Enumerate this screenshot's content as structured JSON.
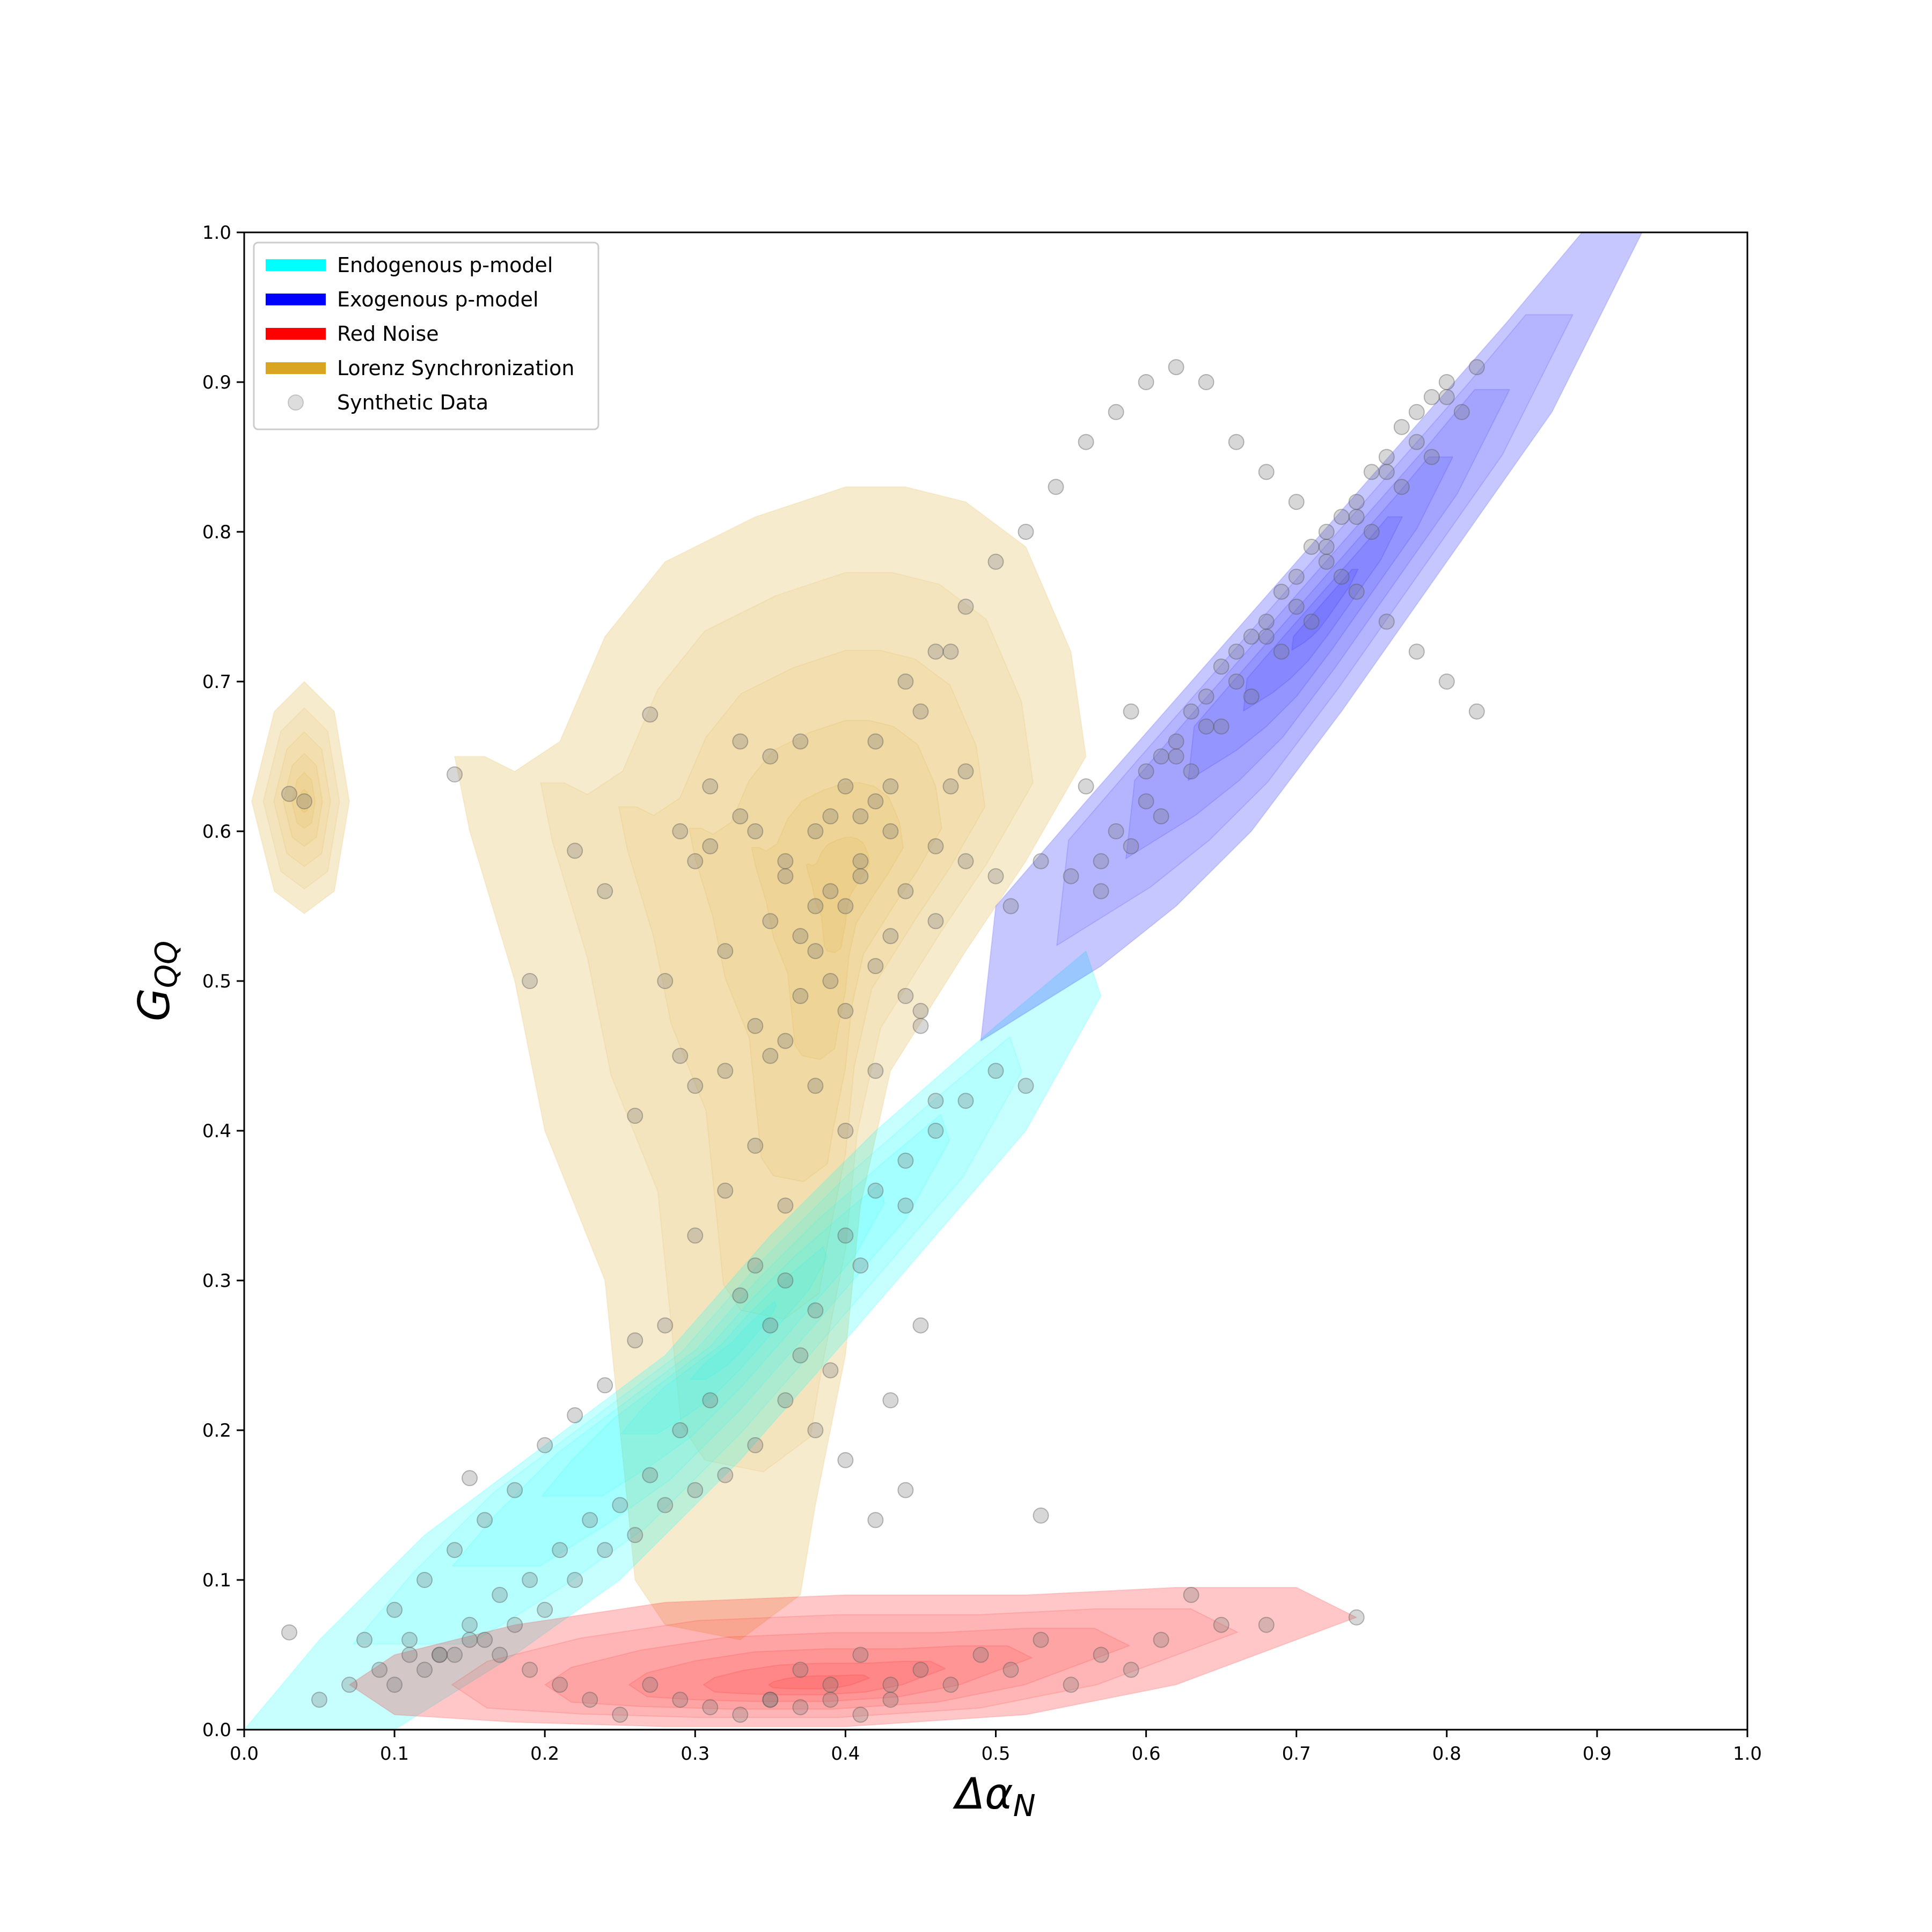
{
  "chart_data": {
    "type": "scatter",
    "title": "",
    "xlabel": "Δα_N",
    "ylabel": "G_QQ",
    "xlim": [
      0.0,
      1.0
    ],
    "ylim": [
      0.0,
      1.0
    ],
    "xticks": [
      "0.0",
      "0.1",
      "0.2",
      "0.3",
      "0.4",
      "0.5",
      "0.6",
      "0.7",
      "0.8",
      "0.9",
      "1.0"
    ],
    "yticks": [
      "0.0",
      "0.1",
      "0.2",
      "0.3",
      "0.4",
      "0.5",
      "0.6",
      "0.7",
      "0.8",
      "0.9",
      "1.0"
    ],
    "grid": false,
    "legend_position": "top-left",
    "legend": [
      {
        "label": "Endogenous p-model",
        "color": "#00ffff",
        "kind": "patch"
      },
      {
        "label": "Exogenous p-model",
        "color": "#0000ff",
        "kind": "patch"
      },
      {
        "label": "Red Noise",
        "color": "#ff0000",
        "kind": "patch"
      },
      {
        "label": "Lorenz Synchronization",
        "color": "#daa520",
        "kind": "patch"
      },
      {
        "label": "Synthetic Data",
        "color": "#bbbbbb",
        "kind": "marker"
      }
    ],
    "density_regions": [
      {
        "series": "Lorenz Synchronization",
        "color": "#daa520",
        "center": [
          0.4,
          0.57
        ],
        "outline": [
          [
            0.26,
            0.1
          ],
          [
            0.24,
            0.3
          ],
          [
            0.2,
            0.4
          ],
          [
            0.18,
            0.5
          ],
          [
            0.15,
            0.6
          ],
          [
            0.14,
            0.65
          ],
          [
            0.16,
            0.65
          ],
          [
            0.18,
            0.64
          ],
          [
            0.21,
            0.66
          ],
          [
            0.24,
            0.73
          ],
          [
            0.28,
            0.78
          ],
          [
            0.34,
            0.81
          ],
          [
            0.4,
            0.83
          ],
          [
            0.44,
            0.83
          ],
          [
            0.48,
            0.82
          ],
          [
            0.52,
            0.79
          ],
          [
            0.55,
            0.72
          ],
          [
            0.56,
            0.65
          ],
          [
            0.52,
            0.58
          ],
          [
            0.48,
            0.52
          ],
          [
            0.43,
            0.44
          ],
          [
            0.41,
            0.35
          ],
          [
            0.4,
            0.25
          ],
          [
            0.38,
            0.15
          ],
          [
            0.37,
            0.09
          ],
          [
            0.33,
            0.06
          ],
          [
            0.28,
            0.07
          ]
        ]
      },
      {
        "series": "Lorenz Synchronization",
        "color": "#daa520",
        "center": [
          0.04,
          0.62
        ],
        "outline": [
          [
            0.005,
            0.62
          ],
          [
            0.02,
            0.68
          ],
          [
            0.04,
            0.7
          ],
          [
            0.06,
            0.68
          ],
          [
            0.07,
            0.62
          ],
          [
            0.06,
            0.56
          ],
          [
            0.04,
            0.545
          ],
          [
            0.02,
            0.56
          ]
        ]
      },
      {
        "series": "Endogenous p-model",
        "color": "#00ffff",
        "center": [
          0.33,
          0.26
        ],
        "outline": [
          [
            0.0,
            0.0
          ],
          [
            0.05,
            0.06
          ],
          [
            0.12,
            0.13
          ],
          [
            0.2,
            0.19
          ],
          [
            0.28,
            0.25
          ],
          [
            0.35,
            0.33
          ],
          [
            0.42,
            0.4
          ],
          [
            0.5,
            0.47
          ],
          [
            0.56,
            0.52
          ],
          [
            0.57,
            0.49
          ],
          [
            0.52,
            0.4
          ],
          [
            0.46,
            0.33
          ],
          [
            0.4,
            0.26
          ],
          [
            0.33,
            0.18
          ],
          [
            0.25,
            0.1
          ],
          [
            0.18,
            0.05
          ],
          [
            0.1,
            0.0
          ]
        ]
      },
      {
        "series": "Exogenous p-model",
        "color": "#0000ff",
        "center": [
          0.72,
          0.75
        ],
        "outline": [
          [
            0.49,
            0.46
          ],
          [
            0.5,
            0.55
          ],
          [
            0.56,
            0.62
          ],
          [
            0.63,
            0.7
          ],
          [
            0.7,
            0.78
          ],
          [
            0.77,
            0.86
          ],
          [
            0.84,
            0.94
          ],
          [
            0.89,
            1.0
          ],
          [
            0.93,
            1.0
          ],
          [
            0.87,
            0.88
          ],
          [
            0.8,
            0.78
          ],
          [
            0.73,
            0.68
          ],
          [
            0.67,
            0.6
          ],
          [
            0.62,
            0.55
          ],
          [
            0.57,
            0.51
          ]
        ]
      },
      {
        "series": "Red Noise",
        "color": "#ff0000",
        "center": [
          0.38,
          0.03
        ],
        "outline": [
          [
            0.07,
            0.03
          ],
          [
            0.1,
            0.05
          ],
          [
            0.18,
            0.07
          ],
          [
            0.28,
            0.085
          ],
          [
            0.4,
            0.09
          ],
          [
            0.52,
            0.09
          ],
          [
            0.62,
            0.095
          ],
          [
            0.7,
            0.095
          ],
          [
            0.74,
            0.075
          ],
          [
            0.7,
            0.06
          ],
          [
            0.62,
            0.03
          ],
          [
            0.52,
            0.01
          ],
          [
            0.4,
            0.002
          ],
          [
            0.28,
            0.002
          ],
          [
            0.18,
            0.005
          ],
          [
            0.1,
            0.01
          ]
        ]
      }
    ],
    "series": [
      {
        "name": "Synthetic Data",
        "kind": "points",
        "x": [
          0.03,
          0.04,
          0.14,
          0.19,
          0.22,
          0.24,
          0.26,
          0.27,
          0.28,
          0.29,
          0.3,
          0.31,
          0.32,
          0.33,
          0.34,
          0.35,
          0.36,
          0.37,
          0.38,
          0.39,
          0.4,
          0.41,
          0.42,
          0.43,
          0.44,
          0.45,
          0.46,
          0.47,
          0.48,
          0.42,
          0.4,
          0.38,
          0.36,
          0.34,
          0.32,
          0.3,
          0.44,
          0.46,
          0.48,
          0.5,
          0.35,
          0.37,
          0.39,
          0.41,
          0.43,
          0.45,
          0.47,
          0.33,
          0.31,
          0.29,
          0.41,
          0.39,
          0.37,
          0.35,
          0.43,
          0.45,
          0.38,
          0.36,
          0.34,
          0.4,
          0.42,
          0.44,
          0.46,
          0.32,
          0.3,
          0.28,
          0.26,
          0.24,
          0.22,
          0.2,
          0.18,
          0.16,
          0.14,
          0.12,
          0.1,
          0.08,
          0.34,
          0.36,
          0.38,
          0.4,
          0.42,
          0.44,
          0.46,
          0.48,
          0.5,
          0.52,
          0.33,
          0.35,
          0.37,
          0.39,
          0.41,
          0.43,
          0.45,
          0.31,
          0.29,
          0.27,
          0.25,
          0.23,
          0.21,
          0.19,
          0.17,
          0.15,
          0.13,
          0.11,
          0.09,
          0.07,
          0.05,
          0.03,
          0.36,
          0.38,
          0.4,
          0.42,
          0.44,
          0.34,
          0.32,
          0.3,
          0.28,
          0.26,
          0.24,
          0.22,
          0.2,
          0.18,
          0.16,
          0.14,
          0.12,
          0.1,
          0.35,
          0.37,
          0.39,
          0.41,
          0.43,
          0.45,
          0.47,
          0.49,
          0.51,
          0.53,
          0.55,
          0.57,
          0.59,
          0.61,
          0.63,
          0.65,
          0.68,
          0.74,
          0.33,
          0.35,
          0.37,
          0.39,
          0.41,
          0.43,
          0.31,
          0.29,
          0.27,
          0.25,
          0.23,
          0.21,
          0.19,
          0.17,
          0.15,
          0.13,
          0.11,
          0.36,
          0.38,
          0.4,
          0.42,
          0.44,
          0.46,
          0.48,
          0.5,
          0.52,
          0.54,
          0.56,
          0.58,
          0.6,
          0.62,
          0.64,
          0.66,
          0.68,
          0.7,
          0.72,
          0.74,
          0.76,
          0.78,
          0.8,
          0.82,
          0.57,
          0.59,
          0.61,
          0.63,
          0.65,
          0.67,
          0.69,
          0.71,
          0.73,
          0.75,
          0.77,
          0.79,
          0.81,
          0.55,
          0.58,
          0.6,
          0.62,
          0.64,
          0.66,
          0.68,
          0.7,
          0.72,
          0.74,
          0.76,
          0.78,
          0.8,
          0.56,
          0.61,
          0.63,
          0.65,
          0.67,
          0.69,
          0.71,
          0.73,
          0.75,
          0.77,
          0.79,
          0.6,
          0.62,
          0.64,
          0.66,
          0.68,
          0.7,
          0.72,
          0.74,
          0.76,
          0.78,
          0.8,
          0.82,
          0.59,
          0.57,
          0.53,
          0.51,
          0.15,
          0.53
        ],
        "y": [
          0.625,
          0.62,
          0.638,
          0.5,
          0.587,
          0.56,
          0.41,
          0.678,
          0.5,
          0.45,
          0.58,
          0.63,
          0.52,
          0.61,
          0.6,
          0.65,
          0.57,
          0.66,
          0.55,
          0.61,
          0.55,
          0.58,
          0.62,
          0.63,
          0.56,
          0.68,
          0.59,
          0.63,
          0.64,
          0.51,
          0.48,
          0.52,
          0.46,
          0.47,
          0.44,
          0.43,
          0.49,
          0.54,
          0.58,
          0.57,
          0.54,
          0.53,
          0.5,
          0.57,
          0.6,
          0.48,
          0.72,
          0.66,
          0.59,
          0.6,
          0.61,
          0.56,
          0.49,
          0.45,
          0.53,
          0.47,
          0.43,
          0.35,
          0.39,
          0.4,
          0.44,
          0.38,
          0.42,
          0.36,
          0.33,
          0.27,
          0.26,
          0.23,
          0.21,
          0.19,
          0.16,
          0.14,
          0.12,
          0.1,
          0.08,
          0.06,
          0.31,
          0.3,
          0.28,
          0.33,
          0.36,
          0.35,
          0.4,
          0.42,
          0.44,
          0.43,
          0.29,
          0.27,
          0.25,
          0.24,
          0.31,
          0.22,
          0.27,
          0.22,
          0.2,
          0.17,
          0.15,
          0.14,
          0.12,
          0.1,
          0.09,
          0.07,
          0.05,
          0.05,
          0.04,
          0.03,
          0.02,
          0.065,
          0.22,
          0.2,
          0.18,
          0.14,
          0.16,
          0.19,
          0.17,
          0.16,
          0.15,
          0.13,
          0.12,
          0.1,
          0.08,
          0.07,
          0.06,
          0.05,
          0.04,
          0.03,
          0.02,
          0.04,
          0.03,
          0.05,
          0.02,
          0.04,
          0.03,
          0.05,
          0.04,
          0.06,
          0.03,
          0.05,
          0.04,
          0.06,
          0.09,
          0.07,
          0.07,
          0.075,
          0.01,
          0.02,
          0.015,
          0.02,
          0.01,
          0.03,
          0.015,
          0.02,
          0.03,
          0.01,
          0.02,
          0.03,
          0.04,
          0.05,
          0.06,
          0.05,
          0.06,
          0.58,
          0.6,
          0.63,
          0.66,
          0.7,
          0.72,
          0.75,
          0.78,
          0.8,
          0.83,
          0.86,
          0.88,
          0.9,
          0.91,
          0.9,
          0.86,
          0.84,
          0.82,
          0.79,
          0.76,
          0.74,
          0.72,
          0.7,
          0.68,
          0.56,
          0.59,
          0.61,
          0.64,
          0.67,
          0.69,
          0.72,
          0.74,
          0.77,
          0.8,
          0.83,
          0.85,
          0.88,
          0.57,
          0.6,
          0.62,
          0.65,
          0.67,
          0.7,
          0.73,
          0.75,
          0.78,
          0.81,
          0.84,
          0.86,
          0.89,
          0.63,
          0.65,
          0.68,
          0.71,
          0.73,
          0.76,
          0.79,
          0.81,
          0.84,
          0.87,
          0.89,
          0.64,
          0.66,
          0.69,
          0.72,
          0.74,
          0.77,
          0.8,
          0.82,
          0.85,
          0.88,
          0.9,
          0.91,
          0.68,
          0.58,
          0.58,
          0.55,
          0.168,
          0.143
        ]
      }
    ]
  }
}
